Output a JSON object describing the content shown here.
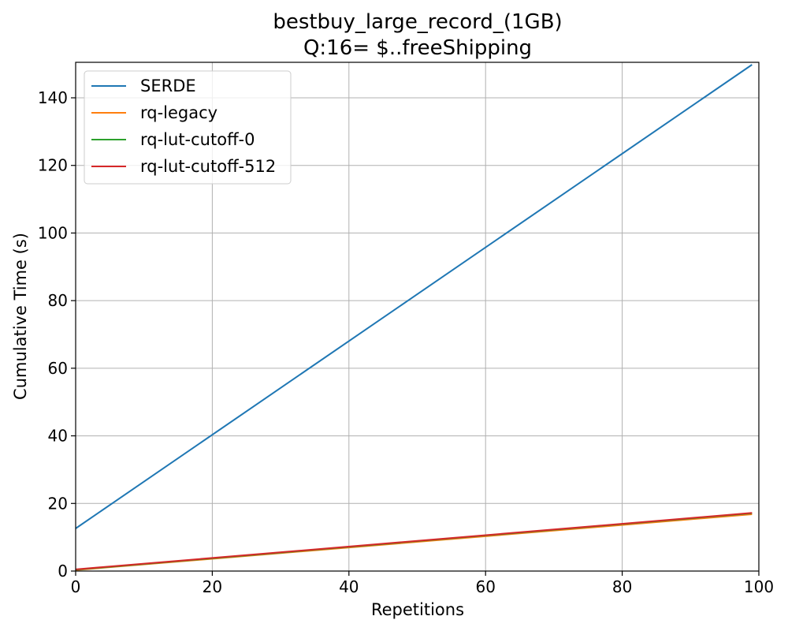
{
  "chart_data": {
    "type": "line",
    "title_line1": "bestbuy_large_record_(1GB)",
    "title_line2": "Q:16= $..freeShipping",
    "xlabel": "Repetitions",
    "ylabel": "Cumulative Time (s)",
    "xlim": [
      0,
      100
    ],
    "ylim": [
      0,
      150.5
    ],
    "xticks": [
      0,
      20,
      40,
      60,
      80,
      100
    ],
    "yticks": [
      0,
      20,
      40,
      60,
      80,
      100,
      120,
      140
    ],
    "grid": true,
    "legend_position": "top-left",
    "series": [
      {
        "name": "SERDE",
        "color": "#1f77b4",
        "x": [
          0,
          99
        ],
        "y": [
          12.6,
          149.8
        ]
      },
      {
        "name": "rq-legacy",
        "color": "#ff7f0e",
        "x": [
          0,
          99
        ],
        "y": [
          0.3,
          16.8
        ]
      },
      {
        "name": "rq-lut-cutoff-0",
        "color": "#2ca02c",
        "x": [
          0,
          99
        ],
        "y": [
          0.4,
          17.1
        ]
      },
      {
        "name": "rq-lut-cutoff-512",
        "color": "#d62728",
        "x": [
          0,
          99
        ],
        "y": [
          0.5,
          17.2
        ]
      }
    ]
  }
}
